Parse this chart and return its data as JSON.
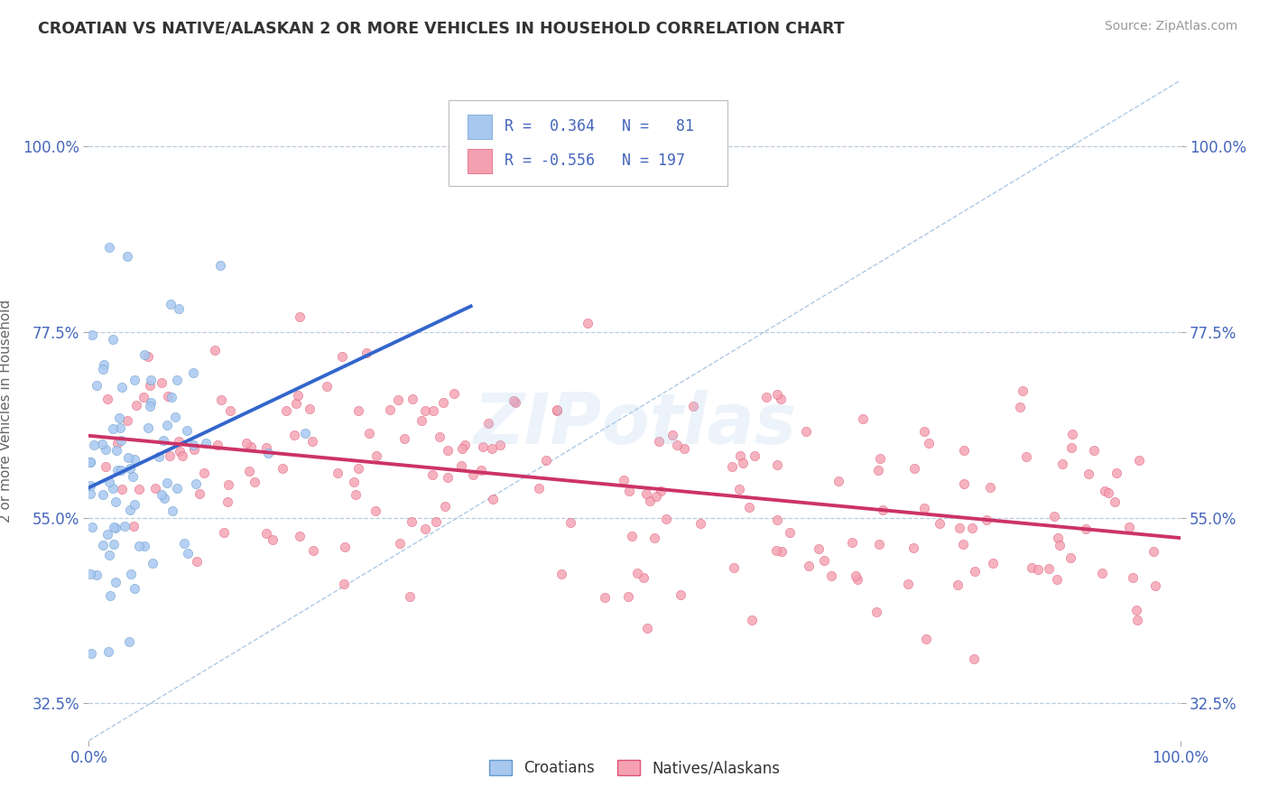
{
  "title": "CROATIAN VS NATIVE/ALASKAN 2 OR MORE VEHICLES IN HOUSEHOLD CORRELATION CHART",
  "source": "Source: ZipAtlas.com",
  "ylabel": "2 or more Vehicles in Household",
  "xlim": [
    0.0,
    1.0
  ],
  "ylim": [
    0.28,
    1.08
  ],
  "yticks": [
    0.325,
    0.55,
    0.775,
    1.0
  ],
  "ytick_labels": [
    "32.5%",
    "55.0%",
    "77.5%",
    "100.0%"
  ],
  "xtick_labels": [
    "0.0%",
    "100.0%"
  ],
  "xticks": [
    0.0,
    1.0
  ],
  "r_croatian": 0.364,
  "n_croatian": 81,
  "r_native": -0.556,
  "n_native": 197,
  "legend_labels": [
    "Croatians",
    "Natives/Alaskans"
  ],
  "color_croatian_fill": "#a8c8f0",
  "color_croatian_edge": "#6699cc",
  "color_native_fill": "#f4a0b0",
  "color_native_edge": "#dd5577",
  "color_line_croatian": "#3366cc",
  "color_line_native": "#cc3366",
  "color_diag": "#99bbdd",
  "color_title": "#333333",
  "color_tick_labels": "#4466bb",
  "background_color": "#ffffff",
  "grid_color": "#bbccdd",
  "watermark": "ZIPotlas",
  "watermark_color": "#aaccee"
}
